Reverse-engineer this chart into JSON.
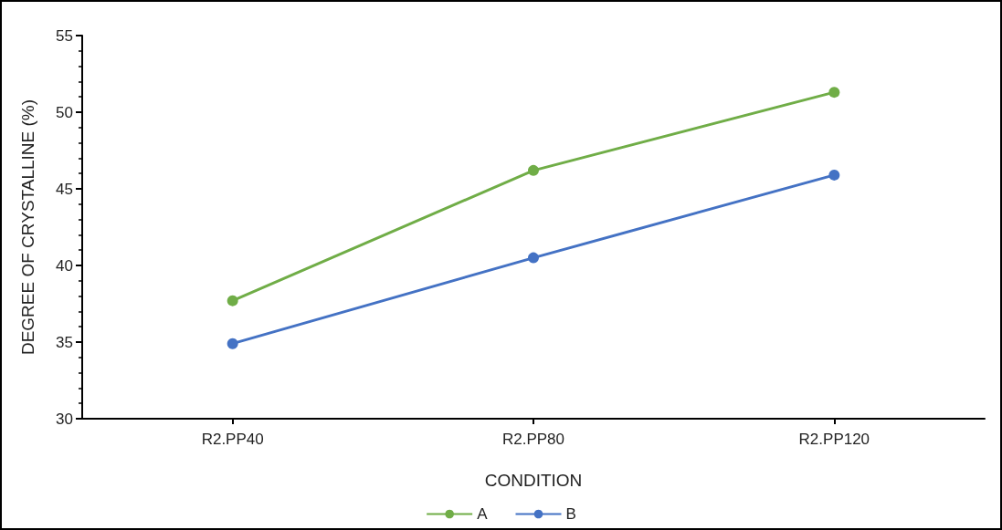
{
  "chart_data": {
    "type": "line",
    "xlabel": "CONDITION",
    "ylabel": "DEGREE OF CRYSTALLINE (%)",
    "categories": [
      "R2.PP40",
      "R2.PP80",
      "R2.PP120"
    ],
    "series": [
      {
        "name": "A",
        "color": "#70ad47",
        "values": [
          37.7,
          46.2,
          51.3
        ]
      },
      {
        "name": "B",
        "color": "#4472c4",
        "values": [
          34.9,
          40.5,
          45.9
        ]
      }
    ],
    "ylim": [
      30,
      55
    ],
    "yticks": [
      30,
      35,
      40,
      45,
      50,
      55
    ],
    "grid": false,
    "legend": "bottom",
    "marker": "circle",
    "line_style": "solid"
  }
}
